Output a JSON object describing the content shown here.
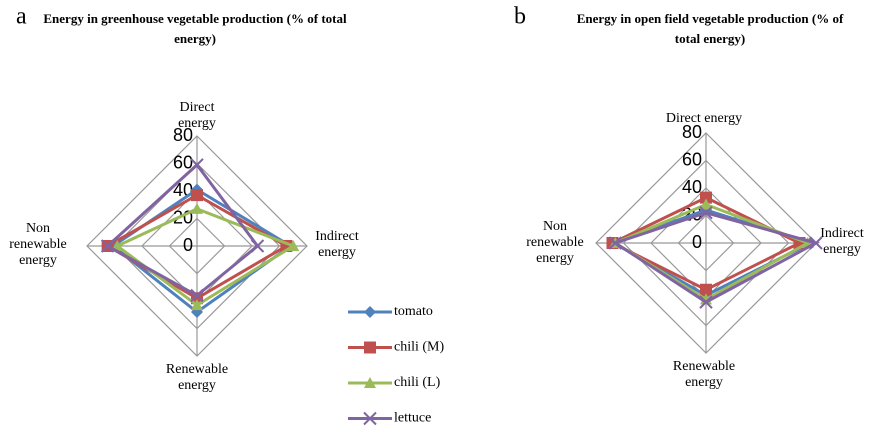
{
  "chart_data": [
    {
      "type": "radar",
      "panel_label": "a",
      "title": "Energy in greenhouse vegetable production (% of total energy)",
      "categories": [
        "Direct energy",
        "Indirect energy",
        "Renewable energy",
        "Non renewable energy"
      ],
      "ylim": [
        0,
        80
      ],
      "yticks": [
        0,
        20,
        40,
        60,
        80
      ],
      "series": [
        {
          "name": "tomato",
          "color": "#4f81bd",
          "marker": "diamond",
          "values": [
            41,
            68,
            48,
            61
          ]
        },
        {
          "name": "chili (M)",
          "color": "#c0504d",
          "marker": "square",
          "values": [
            37,
            65,
            38,
            65
          ]
        },
        {
          "name": "chili (L)",
          "color": "#9bbb59",
          "marker": "triangle",
          "values": [
            27,
            70,
            43,
            58
          ]
        },
        {
          "name": "lettuce",
          "color": "#8064a2",
          "marker": "x",
          "values": [
            59,
            44,
            36,
            65
          ]
        }
      ]
    },
    {
      "type": "radar",
      "panel_label": "b",
      "title": "Energy in open field vegetable production (% of total energy)",
      "categories": [
        "Direct energy",
        "Indirect energy",
        "Renewable energy",
        "Non renewable energy"
      ],
      "ylim": [
        0,
        80
      ],
      "yticks": [
        0,
        20,
        40,
        60,
        80
      ],
      "series": [
        {
          "color": "#4f81bd",
          "marker": "diamond",
          "values": [
            24,
            76,
            38,
            67
          ]
        },
        {
          "color": "#c0504d",
          "marker": "square",
          "values": [
            33,
            68,
            34,
            68
          ]
        },
        {
          "color": "#9bbb59",
          "marker": "triangle",
          "values": [
            28,
            74,
            41,
            66
          ]
        },
        {
          "color": "#8064a2",
          "marker": "x",
          "values": [
            22,
            80,
            43,
            66
          ]
        }
      ]
    }
  ]
}
